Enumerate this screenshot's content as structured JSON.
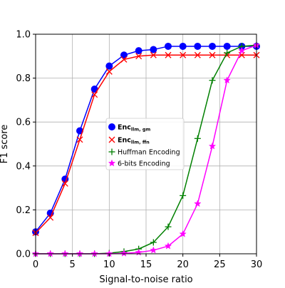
{
  "chart_data": {
    "type": "line",
    "title": "",
    "xlabel": "Signal-to-noise ratio",
    "ylabel": "F1 score",
    "xlim": [
      0,
      30
    ],
    "ylim": [
      0,
      1.0
    ],
    "xticks": [
      0,
      5,
      10,
      15,
      20,
      25,
      30
    ],
    "yticks": [
      0.0,
      0.2,
      0.4,
      0.6,
      0.8,
      1.0
    ],
    "xtick_labels": [
      "0",
      "5",
      "10",
      "15",
      "20",
      "25",
      "30"
    ],
    "ytick_labels": [
      "0.0",
      "0.2",
      "0.4",
      "0.6",
      "0.8",
      "1.0"
    ],
    "grid": true,
    "legend_position": "center",
    "x": [
      0,
      2,
      4,
      6,
      8,
      10,
      12,
      14,
      16,
      18,
      20,
      22,
      24,
      26,
      28,
      30
    ],
    "series": [
      {
        "name": "Enc",
        "name_sub": "llm, gm",
        "color": "#0000ff",
        "marker": "circle",
        "values": [
          0.1,
          0.185,
          0.34,
          0.56,
          0.75,
          0.855,
          0.905,
          0.925,
          0.93,
          0.945,
          0.945,
          0.945,
          0.945,
          0.945,
          0.945,
          0.945
        ]
      },
      {
        "name": "Enc",
        "name_sub": "llm, ffn",
        "color": "#ff0000",
        "marker": "x",
        "values": [
          0.095,
          0.165,
          0.32,
          0.52,
          0.725,
          0.83,
          0.885,
          0.9,
          0.905,
          0.905,
          0.905,
          0.905,
          0.905,
          0.905,
          0.905,
          0.905
        ]
      },
      {
        "name": "Huffman Encoding",
        "name_sub": "",
        "color": "#008000",
        "marker": "plus",
        "values": [
          0.0,
          0.0,
          0.0,
          0.0,
          0.0,
          0.003,
          0.01,
          0.022,
          0.052,
          0.123,
          0.265,
          0.525,
          0.79,
          0.915,
          0.945,
          0.95
        ]
      },
      {
        "name": "6-bits Encoding",
        "name_sub": "",
        "color": "#ff00ff",
        "marker": "star",
        "values": [
          0.0,
          0.0,
          0.0,
          0.0,
          0.0,
          0.0,
          0.002,
          0.006,
          0.016,
          0.035,
          0.09,
          0.228,
          0.49,
          0.79,
          0.925,
          0.95
        ]
      }
    ]
  }
}
